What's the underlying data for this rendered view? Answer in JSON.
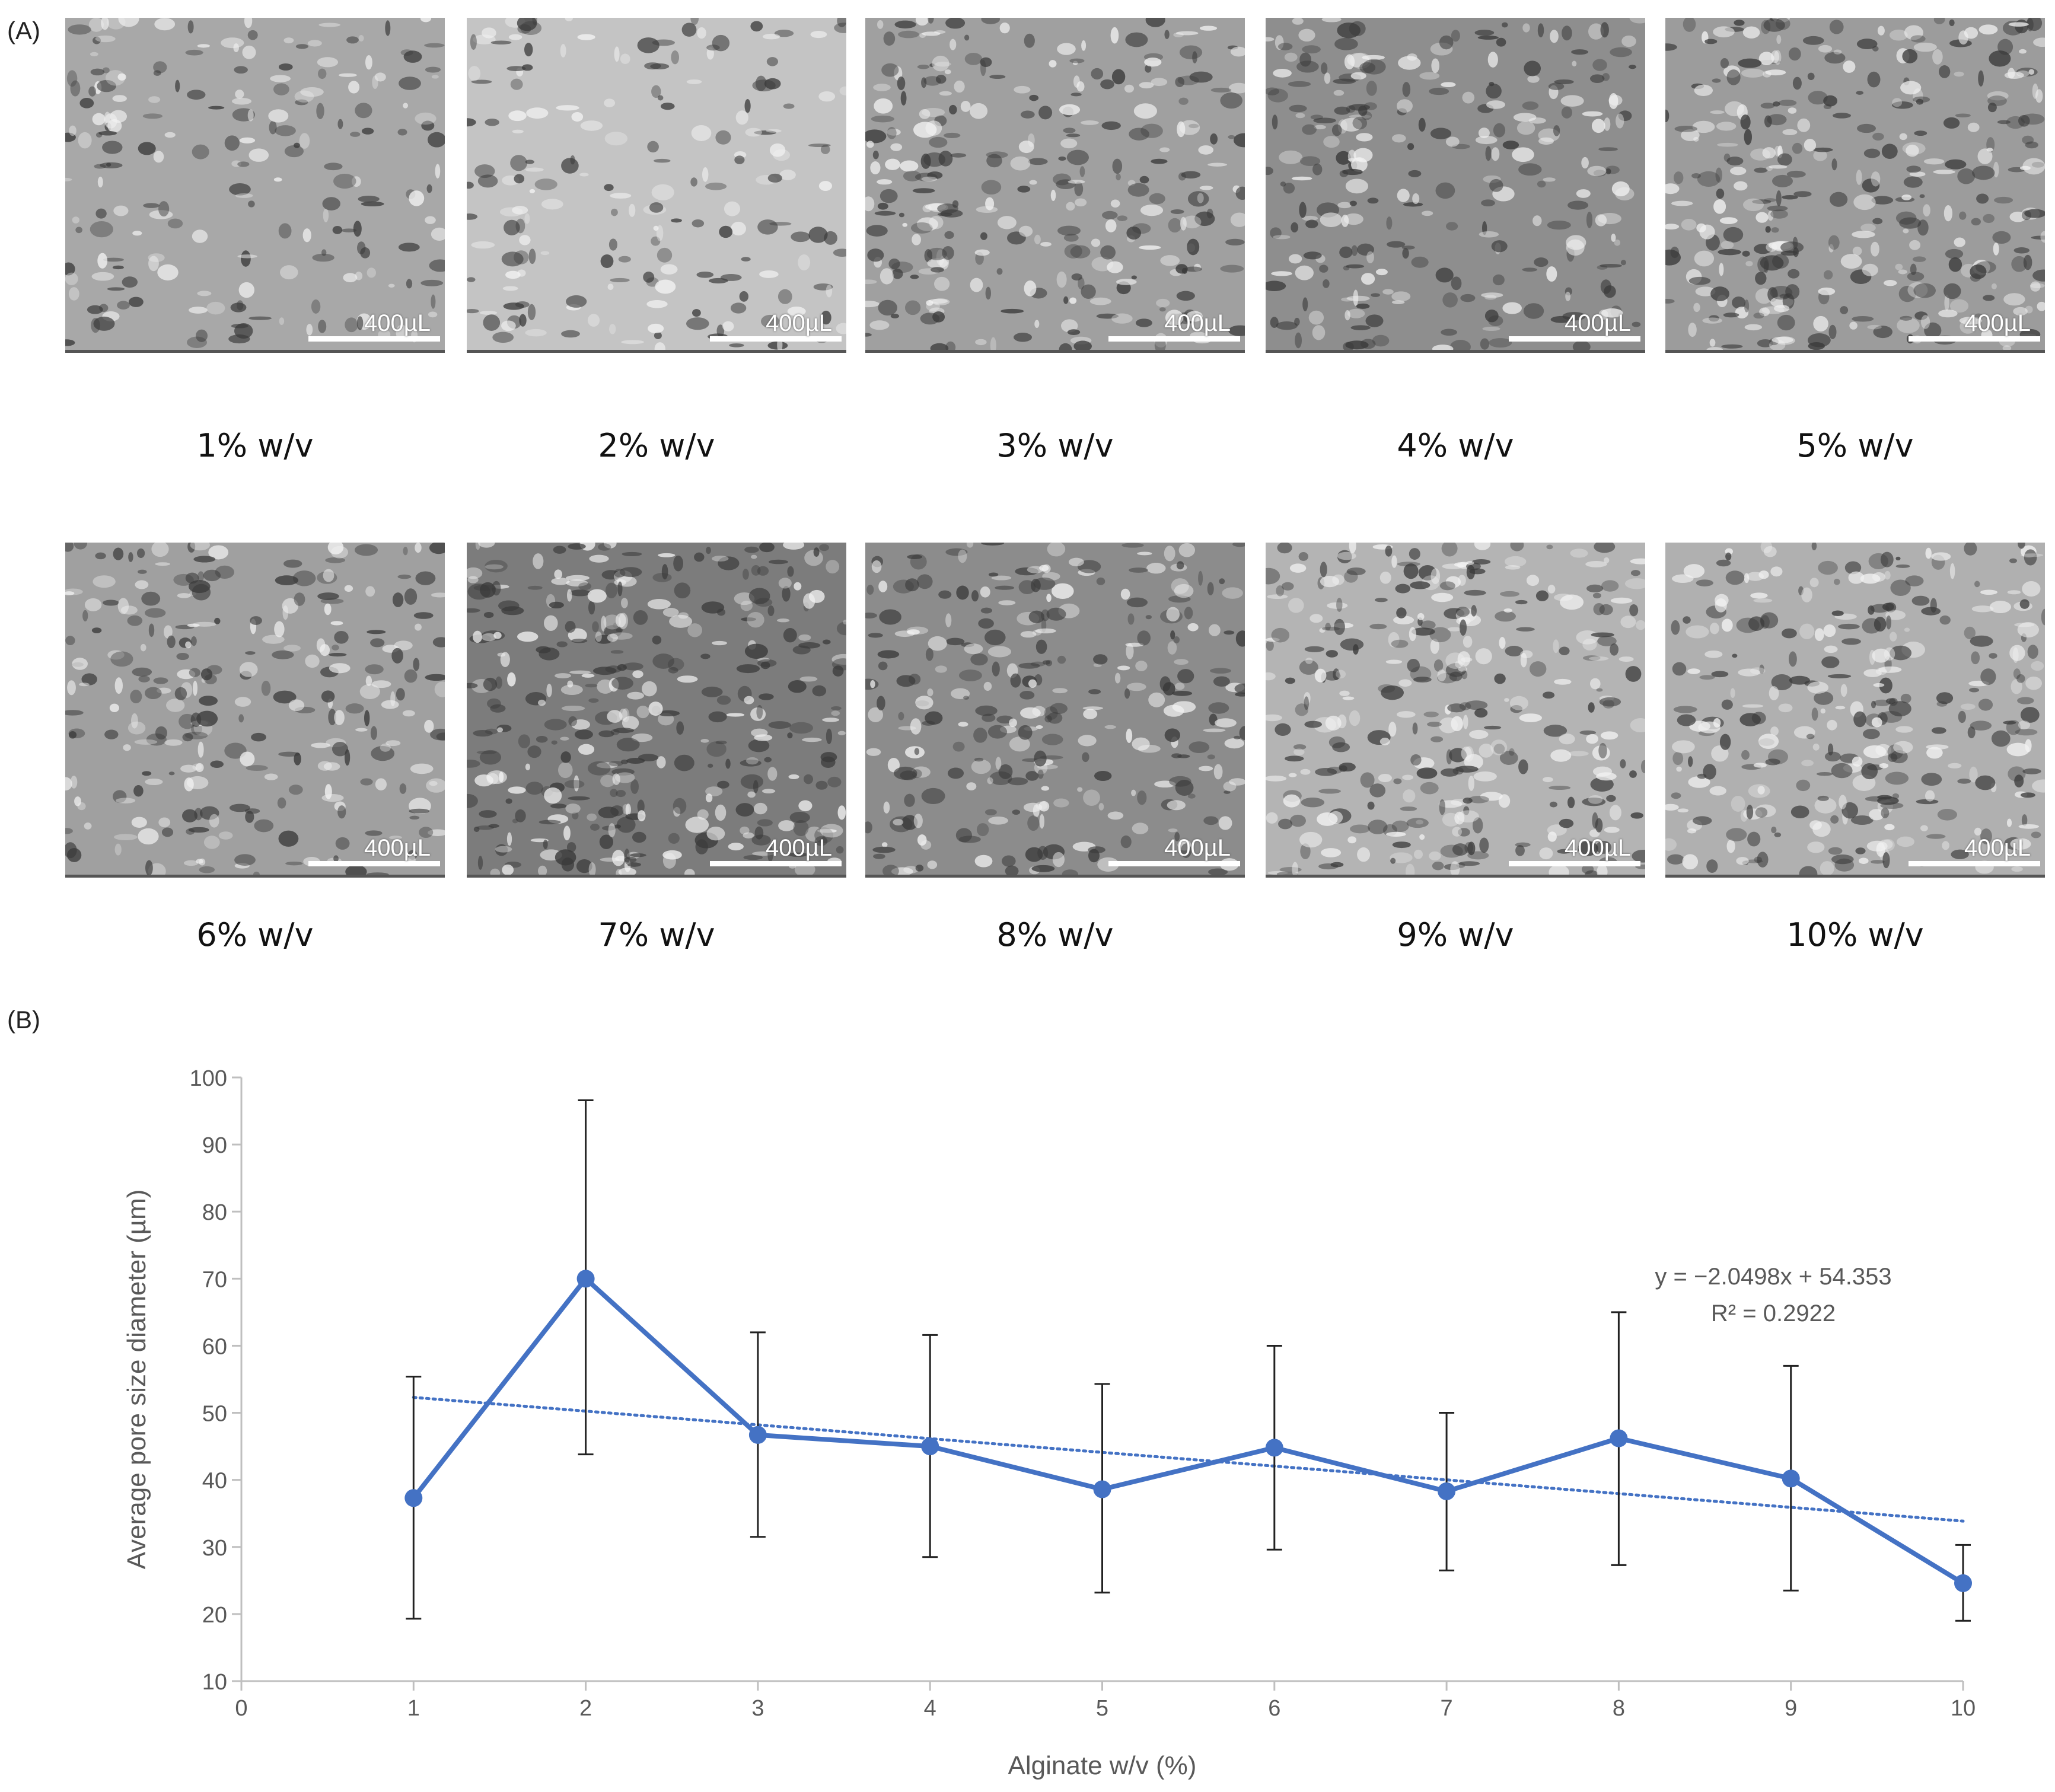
{
  "panel_a": {
    "label": "(A)",
    "images": [
      {
        "caption": "1% w/v",
        "scale": "400µL",
        "tone": "#a8a8a8",
        "density": 0.35
      },
      {
        "caption": "2% w/v",
        "scale": "400µL",
        "tone": "#c4c4c4",
        "density": 0.3
      },
      {
        "caption": "3% w/v",
        "scale": "400µL",
        "tone": "#a0a0a0",
        "density": 0.7
      },
      {
        "caption": "4% w/v",
        "scale": "400µL",
        "tone": "#8e8e8e",
        "density": 0.6
      },
      {
        "caption": "5% w/v",
        "scale": "400µL",
        "tone": "#9c9c9c",
        "density": 0.9
      },
      {
        "caption": "6% w/v",
        "scale": "400µL",
        "tone": "#a0a0a0",
        "density": 0.6
      },
      {
        "caption": "7% w/v",
        "scale": "400µL",
        "tone": "#7c7c7c",
        "density": 1.0
      },
      {
        "caption": "8% w/v",
        "scale": "400µL",
        "tone": "#8c8c8c",
        "density": 0.7
      },
      {
        "caption": "9% w/v",
        "scale": "400µL",
        "tone": "#b4b4b4",
        "density": 0.9
      },
      {
        "caption": "10% w/v",
        "scale": "400µL",
        "tone": "#b0b0b0",
        "density": 0.8
      }
    ]
  },
  "panel_b": {
    "label": "(B)"
  },
  "chart_data": {
    "type": "line",
    "title": "",
    "xlabel": "Alginate w/v (%)",
    "ylabel": "Average pore size diameter (µm)",
    "xlim": [
      0,
      10
    ],
    "ylim": [
      10,
      100
    ],
    "xticks": [
      0,
      1,
      2,
      3,
      4,
      5,
      6,
      7,
      8,
      9,
      10
    ],
    "yticks": [
      10,
      20,
      30,
      40,
      50,
      60,
      70,
      80,
      90,
      100
    ],
    "series": [
      {
        "name": "Average pore size",
        "color": "#4472c4",
        "x": [
          1,
          2,
          3,
          4,
          5,
          6,
          7,
          8,
          9,
          10
        ],
        "y": [
          37.3,
          70.0,
          46.7,
          45.0,
          38.6,
          44.8,
          38.3,
          46.2,
          40.2,
          24.6
        ],
        "err_low": [
          19.3,
          43.8,
          31.5,
          28.5,
          23.2,
          29.6,
          26.5,
          27.3,
          23.5,
          19.0
        ],
        "err_high": [
          55.4,
          96.6,
          62.0,
          61.6,
          54.3,
          60.0,
          50.0,
          65.0,
          57.0,
          30.3
        ]
      }
    ],
    "trendline": {
      "type": "linear",
      "slope": -2.0498,
      "intercept": 54.353,
      "x_range": [
        1,
        10
      ],
      "color": "#4472c4",
      "equation": "y = −2.0498x + 54.353",
      "r_squared": "R² = 0.2922"
    },
    "grid": false,
    "legend": "none"
  }
}
